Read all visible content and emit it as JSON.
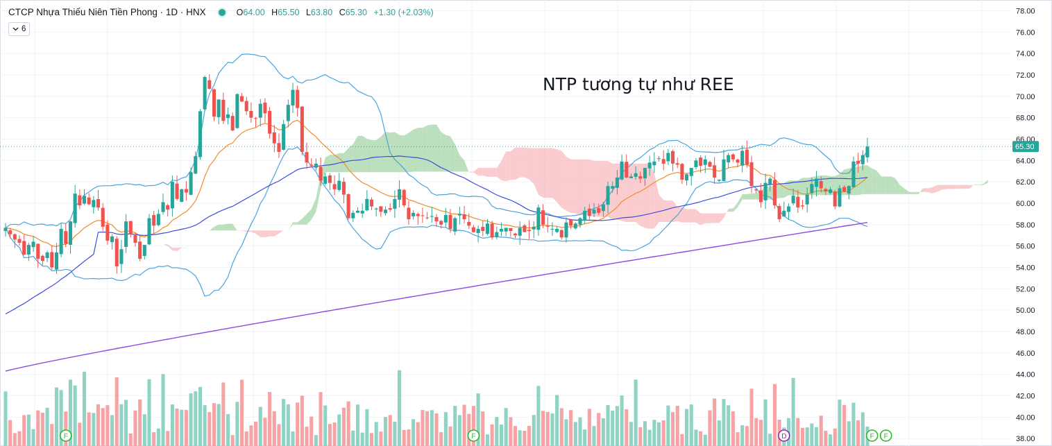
{
  "header": {
    "title": "CTCP Nhựa Thiếu Niên Tiền Phong · 1D · HNX",
    "ohlc": [
      {
        "label": "O",
        "value": "64.00"
      },
      {
        "label": "H",
        "value": "65.50"
      },
      {
        "label": "L",
        "value": "63.80"
      },
      {
        "label": "C",
        "value": "65.30"
      },
      {
        "label": "",
        "value": "+1.30 (+2.03%)"
      }
    ],
    "indicator_count": "6"
  },
  "annotation": "NTP tương tự như REE",
  "colors": {
    "up": "#26a69a",
    "down": "#ef5350",
    "volume_up": "#8fd3c4",
    "volume_down": "#f6a3a6",
    "cloud_bull": "#a5d6a7",
    "cloud_bear": "#f8bbbf",
    "bollinger": "#4aa3df",
    "ema_fast": "#f28c28",
    "ma_blue": "#3d4cd9",
    "ma_purple": "#8b4be0",
    "last_price": "#26a69a"
  },
  "chart_data": {
    "type": "candlestick",
    "ylim": [
      37.3,
      79.0
    ],
    "y_ticks": [
      "78.00",
      "76.00",
      "74.00",
      "72.00",
      "70.00",
      "68.00",
      "66.00",
      "64.00",
      "62.00",
      "60.00",
      "58.00",
      "56.00",
      "54.00",
      "52.00",
      "50.00",
      "48.00",
      "46.00",
      "44.00",
      "42.00",
      "40.00",
      "38.00"
    ],
    "last_price_label": "65.30",
    "last_price": 65.3,
    "event_markers": [
      {
        "label": "F",
        "bar": 13
      },
      {
        "label": "F",
        "bar": 101
      },
      {
        "label": "D",
        "bar": 168
      },
      {
        "label": "F",
        "bar": 187
      },
      {
        "label": "F",
        "bar": 190
      }
    ],
    "closes": [
      57.7,
      57.1,
      56.6,
      56.3,
      55.2,
      56.1,
      56.4,
      54.8,
      54.6,
      55.4,
      54.0,
      55.4,
      57.6,
      56.2,
      58.3,
      60.9,
      59.8,
      60.7,
      59.9,
      60.3,
      59.6,
      57.8,
      56.5,
      56.9,
      54.1,
      55.7,
      58.3,
      57.1,
      56.3,
      54.8,
      56.1,
      58.6,
      57.9,
      59.0,
      60.1,
      59.4,
      62.0,
      60.4,
      61.3,
      61.0,
      62.9,
      64.4,
      68.6,
      71.8,
      70.7,
      68.1,
      69.7,
      67.7,
      68.3,
      66.8,
      70.2,
      69.5,
      68.6,
      68.0,
      67.9,
      69.3,
      68.4,
      66.5,
      65.6,
      64.8,
      67.4,
      69.2,
      70.6,
      68.9,
      64.8,
      63.8,
      63.5,
      63.7,
      62.1,
      62.5,
      61.9,
      61.3,
      62.1,
      60.8,
      58.6,
      59.1,
      59.3,
      59.3,
      60.4,
      59.7,
      59.5,
      59.2,
      59.4,
      59.4,
      60.4,
      61.3,
      59.8,
      58.5,
      59.1,
      58.8,
      58.8,
      58.6,
      58.8,
      58.3,
      58.0,
      58.9,
      57.6,
      58.6,
      59.0,
      58.5,
      57.9,
      57.3,
      57.6,
      57.4,
      58.1,
      56.8,
      57.3,
      57.6,
      57.7,
      57.4,
      57.0,
      57.7,
      57.3,
      57.4,
      57.8,
      59.6,
      58.0,
      57.8,
      57.6,
      57.6,
      56.8,
      58.2,
      57.9,
      58.1,
      58.6,
      59.3,
      58.8,
      59.4,
      59.1,
      59.9,
      61.6,
      61.6,
      62.4,
      63.9,
      62.4,
      62.5,
      62.8,
      62.3,
      63.3,
      63.8,
      63.9,
      64.2,
      63.7,
      64.7,
      63.7,
      63.6,
      62.2,
      62.7,
      63.3,
      64.0,
      63.5,
      64.1,
      63.4,
      62.4,
      62.2,
      64.1,
      64.5,
      64.1,
      63.8,
      64.9,
      63.6,
      61.6,
      61.2,
      60.1,
      61.9,
      62.3,
      59.8,
      58.5,
      59.3,
      59.7,
      60.7,
      59.6,
      59.7,
      60.8,
      61.8,
      62.3,
      61.4,
      61.1,
      61.3,
      59.7,
      61.4,
      61.1,
      61.6,
      63.9,
      63.7,
      64.5,
      65.3
    ],
    "series": [
      {
        "name": "",
        "kind": "bollinger_upper"
      },
      {
        "name": "",
        "kind": "bollinger_lower"
      },
      {
        "name": "",
        "kind": "ema_fast"
      },
      {
        "name": "",
        "kind": "ma_mid"
      },
      {
        "name": "",
        "kind": "ma_long"
      }
    ]
  }
}
